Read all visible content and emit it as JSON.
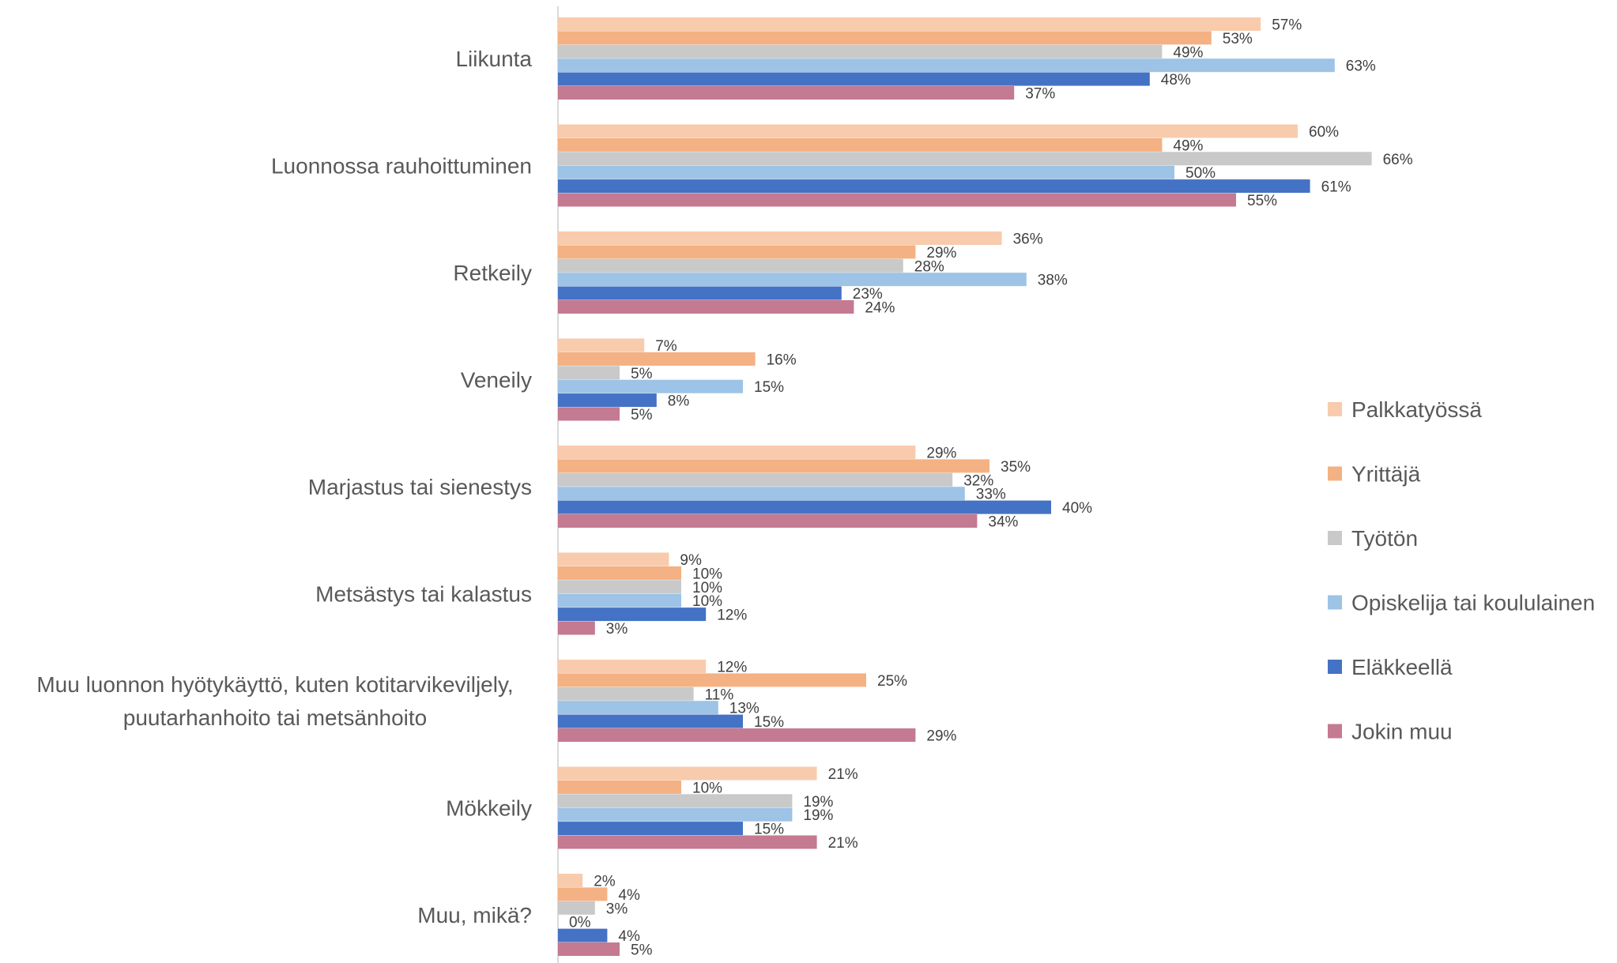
{
  "chart_data": {
    "type": "bar",
    "orientation": "horizontal",
    "title": "",
    "xlabel": "",
    "ylabel": "",
    "value_format": "percent",
    "xlim": [
      0,
      70
    ],
    "grid": false,
    "legend_position": "right",
    "categories": [
      "Liikunta",
      "Luonnossa rauhoittuminen",
      "Retkeily",
      "Veneily",
      "Marjastus tai sienestys",
      "Metsästys tai kalastus",
      "Muu luonnon hyötykäyttö, kuten kotitarvikeviljely, puutarhanhoito tai metsänhoito",
      "Mökkeily",
      "Muu, mikä?"
    ],
    "category_lines": [
      [
        "Liikunta"
      ],
      [
        "Luonnossa rauhoittuminen"
      ],
      [
        "Retkeily"
      ],
      [
        "Veneily"
      ],
      [
        "Marjastus tai sienestys"
      ],
      [
        "Metsästys tai kalastus"
      ],
      [
        "Muu luonnon hyötykäyttö, kuten kotitarvikeviljely,",
        "puutarhanhoito tai metsänhoito"
      ],
      [
        "Mökkeily"
      ],
      [
        "Muu, mikä?"
      ]
    ],
    "series": [
      {
        "name": "Palkkatyössä",
        "color": "#F8CBAD",
        "values": [
          57,
          60,
          36,
          7,
          29,
          9,
          12,
          21,
          2
        ]
      },
      {
        "name": "Yrittäjä",
        "color": "#F4B183",
        "values": [
          53,
          49,
          29,
          16,
          35,
          10,
          25,
          10,
          4
        ]
      },
      {
        "name": "Työtön",
        "color": "#C9C9C9",
        "values": [
          49,
          66,
          28,
          5,
          32,
          10,
          11,
          19,
          3
        ]
      },
      {
        "name": "Opiskelija tai koululainen",
        "color": "#9DC3E6",
        "values": [
          63,
          50,
          38,
          15,
          33,
          10,
          13,
          19,
          0
        ]
      },
      {
        "name": "Eläkkeellä",
        "color": "#4472C4",
        "values": [
          48,
          61,
          23,
          8,
          40,
          12,
          15,
          15,
          4
        ]
      },
      {
        "name": "Jokin muu",
        "color": "#C47A91",
        "values": [
          37,
          55,
          24,
          5,
          34,
          3,
          29,
          21,
          5
        ]
      }
    ]
  }
}
